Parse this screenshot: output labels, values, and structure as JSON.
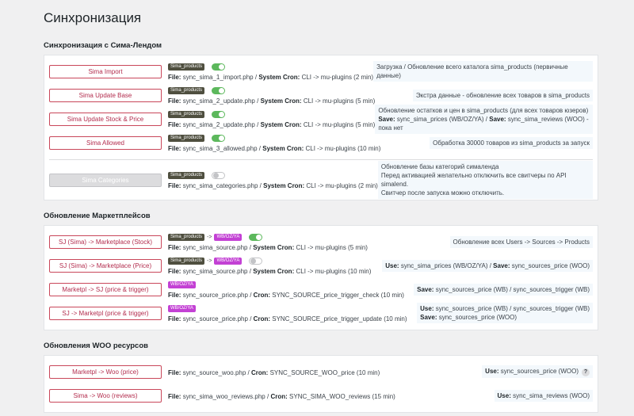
{
  "title": "Синхронизация",
  "sections": [
    {
      "title": "Синхронизация с Сима-Лендом",
      "rows": [
        {
          "button": "Sima Import",
          "tags": [
            {
              "text": "Sima_products",
              "color": "#4f4f3f"
            }
          ],
          "toggle": true,
          "file": {
            "label": "File:",
            "name": "sync_sima_1_import.php",
            "sep": "/",
            "cron_label": "System Cron:",
            "cron": "CLI -> mu-plugins (2 min)"
          },
          "desc": [
            [
              {
                "text": "Загрузка / Обновление всего каталога sima_products (первичные данные)"
              }
            ]
          ]
        },
        {
          "button": "Sima Update Base",
          "tags": [
            {
              "text": "Sima_products",
              "color": "#4f4f3f"
            }
          ],
          "toggle": true,
          "file": {
            "label": "File:",
            "name": "sync_sima_2_update.php",
            "sep": "/",
            "cron_label": "System Cron:",
            "cron": "CLI -> mu-plugins (5 min)"
          },
          "desc": [
            [
              {
                "text": "Экстра данные - обновление всех товаров в sima_products"
              }
            ]
          ]
        },
        {
          "button": "Sima Update Stock & Price",
          "tags": [
            {
              "text": "Sima_products",
              "color": "#4f4f3f"
            }
          ],
          "toggle": true,
          "file": {
            "label": "File:",
            "name": "sync_sima_2_update.php",
            "sep": "/",
            "cron_label": "System Cron:",
            "cron": "CLI -> mu-plugins (5 min)"
          },
          "desc": [
            [
              {
                "text": "Обновление остатков и цен в sima_products (для всех товаров юзеров)"
              }
            ],
            [
              {
                "text": "Save:",
                "bold": true
              },
              {
                "text": "sync_sima_prices (WB/OZ/YA) /"
              },
              {
                "text": "Save:",
                "bold": true
              },
              {
                "text": "sync_sima_reviews (WOO) - пока нет"
              }
            ]
          ]
        },
        {
          "button": "Sima Allowed",
          "tags": [
            {
              "text": "Sima_products",
              "color": "#4f4f3f"
            }
          ],
          "toggle": true,
          "file": {
            "label": "File:",
            "name": "sync_sima_3_allowed.php",
            "sep": "/",
            "cron_label": "System Cron:",
            "cron": "CLI -> mu-plugins (10 min)"
          },
          "desc": [
            [
              {
                "text": "Обработка 30000 товаров из sima_products за запуск"
              }
            ]
          ]
        },
        {
          "separator": true,
          "disabled": true,
          "button": "Sima Categories",
          "tags": [
            {
              "text": "Sima_products",
              "color": "#4f4f3f"
            }
          ],
          "toggle": false,
          "file": {
            "label": "File:",
            "name": "sync_sima_categories.php",
            "sep": "/",
            "cron_label": "System Cron:",
            "cron": "CLI -> mu-plugins (2 min)"
          },
          "desc": [
            [
              {
                "text": "Обновление базы категорий сималенда"
              }
            ],
            [
              {
                "text": "Перед активацией желательно отключить все свитчеры по API simalend."
              }
            ],
            [
              {
                "text": "Свитчер после запуска можно отключить."
              }
            ]
          ]
        }
      ]
    },
    {
      "title": "Обновление Маркетплейсов",
      "rows": [
        {
          "button": "SJ (Sima) -> Marketplace (Stock)",
          "tags": [
            {
              "text": "Sima_products",
              "color": "#4f4f3f"
            },
            {
              "text": "WB/OZ/YA",
              "color": "#c341d4"
            }
          ],
          "tag_sep": "->",
          "toggle": true,
          "file": {
            "label": "File:",
            "name": "sync_sima_source.php",
            "sep": "/",
            "cron_label": "System Cron:",
            "cron": "CLI -> mu-plugins (5 min)"
          },
          "desc": [
            [
              {
                "text": "Обновление всех Users -> Sources -> Products"
              }
            ]
          ]
        },
        {
          "button": "SJ (Sima) -> Marketplace (Price)",
          "tags": [
            {
              "text": "Sima_products",
              "color": "#4f4f3f"
            },
            {
              "text": "WB/OZ/YA",
              "color": "#c341d4"
            }
          ],
          "tag_sep": "->",
          "toggle": false,
          "file": {
            "label": "File:",
            "name": "sync_sima_source.php",
            "sep": "/",
            "cron_label": "System Cron:",
            "cron": "CLI -> mu-plugins (10 min)"
          },
          "desc": [
            [
              {
                "text": "Use:",
                "bold": true
              },
              {
                "text": "sync_sima_prices (WB/OZ/YA) /"
              },
              {
                "text": "Save:",
                "bold": true
              },
              {
                "text": "sync_sources_price (WOO)"
              }
            ]
          ]
        },
        {
          "button": "Marketpl -> SJ (price & trigger)",
          "tags": [
            {
              "text": "WB/OZ/YA",
              "color": "#c341d4"
            }
          ],
          "file": {
            "label": "File:",
            "name": "sync_source_price.php",
            "sep": "/",
            "cron_label": "Cron:",
            "cron": "SYNC_SOURCE_price_trigger_check (10 min)"
          },
          "desc": [
            [
              {
                "text": "Save:",
                "bold": true
              },
              {
                "text": "sync_sources_price (WB) / sync_sources_trigger (WB)"
              }
            ]
          ]
        },
        {
          "button": "SJ -> Marketpl (price & trigger)",
          "tags": [
            {
              "text": "WB/OZ/YA",
              "color": "#c341d4"
            }
          ],
          "file": {
            "label": "File:",
            "name": "sync_source_price.php",
            "sep": "/",
            "cron_label": "Cron:",
            "cron": "SYNC_SOURCE_price_trigger_update (10 min)"
          },
          "desc": [
            [
              {
                "text": "Use:",
                "bold": true
              },
              {
                "text": "sync_sources_price (WB) / sync_sources_trigger (WB)"
              }
            ],
            [
              {
                "text": "Save:",
                "bold": true
              },
              {
                "text": "sync_sources_price (WOO)"
              }
            ]
          ]
        }
      ]
    },
    {
      "title": "Обновления WOO ресурсов",
      "rows": [
        {
          "button": "Marketpl -> Woo (price)",
          "file": {
            "label": "File:",
            "name": "sync_source_woo.php",
            "sep": "/",
            "cron_label": "Cron:",
            "cron": "SYNC_SOURCE_WOO_price (10 min)"
          },
          "desc": [
            [
              {
                "text": "Use:",
                "bold": true
              },
              {
                "text": "sync_sources_price (WOO)"
              }
            ]
          ],
          "help": "?"
        },
        {
          "button": "Sima -> Woo (reviews)",
          "file": {
            "label": "File:",
            "name": "sync_sima_woo_reviews.php",
            "sep": "/",
            "cron_label": "Cron:",
            "cron": "SYNC_SIMA_WOO_reviews (15 min)"
          },
          "desc": [
            [
              {
                "text": "Use:",
                "bold": true
              },
              {
                "text": "sync_sima_reviews (WOO)"
              }
            ]
          ]
        }
      ]
    }
  ]
}
